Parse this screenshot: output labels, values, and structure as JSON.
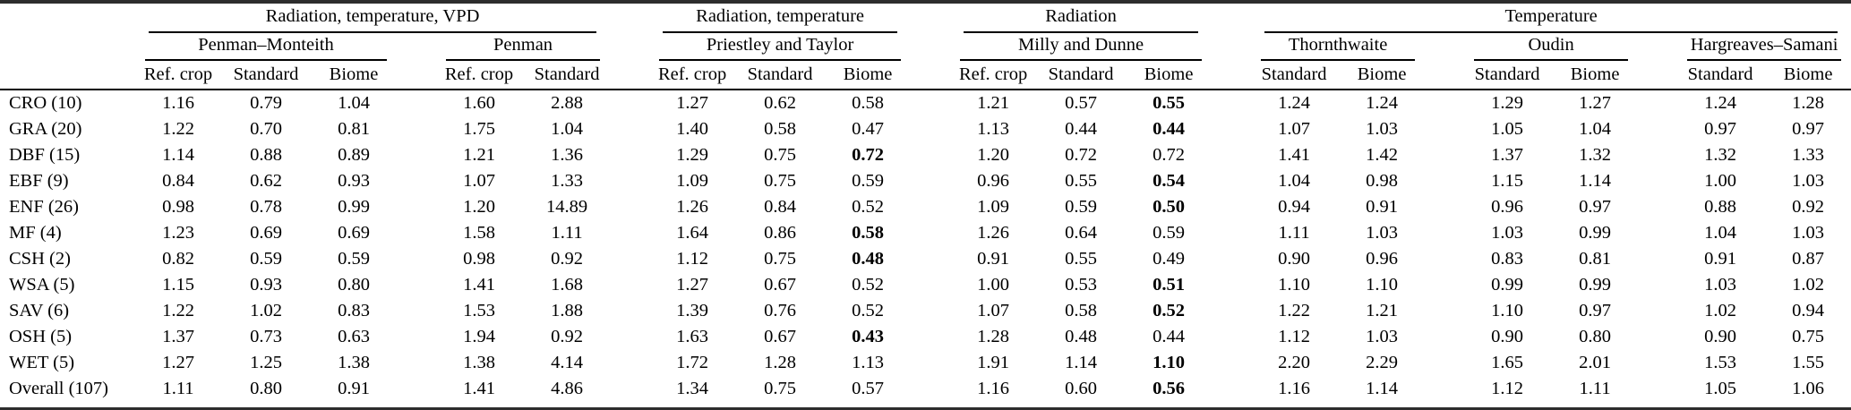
{
  "table": {
    "groups": [
      {
        "label": "Radiation, temperature, VPD",
        "methods": [
          {
            "name": "Penman–Monteith",
            "cols": [
              "Ref. crop",
              "Standard",
              "Biome"
            ]
          },
          {
            "name": "Penman",
            "cols": [
              "Ref. crop",
              "Standard"
            ]
          }
        ]
      },
      {
        "label": "Radiation, temperature",
        "methods": [
          {
            "name": "Priestley and Taylor",
            "cols": [
              "Ref. crop",
              "Standard",
              "Biome"
            ]
          }
        ]
      },
      {
        "label": "Radiation",
        "methods": [
          {
            "name": "Milly and Dunne",
            "cols": [
              "Ref. crop",
              "Standard",
              "Biome"
            ]
          }
        ]
      },
      {
        "label": "Temperature",
        "methods": [
          {
            "name": "Thornthwaite",
            "cols": [
              "Standard",
              "Biome"
            ]
          },
          {
            "name": "Oudin",
            "cols": [
              "Standard",
              "Biome"
            ]
          },
          {
            "name": "Hargreaves–Samani",
            "cols": [
              "Standard",
              "Biome"
            ]
          }
        ]
      }
    ],
    "rows": [
      {
        "label": "CRO (10)",
        "values": [
          "1.16",
          "0.79",
          "1.04",
          "1.60",
          "2.88",
          "1.27",
          "0.62",
          "0.58",
          "1.21",
          "0.57",
          "0.55",
          "1.24",
          "1.24",
          "1.29",
          "1.27",
          "1.24",
          "1.28"
        ],
        "bold": [
          10
        ]
      },
      {
        "label": "GRA (20)",
        "values": [
          "1.22",
          "0.70",
          "0.81",
          "1.75",
          "1.04",
          "1.40",
          "0.58",
          "0.47",
          "1.13",
          "0.44",
          "0.44",
          "1.07",
          "1.03",
          "1.05",
          "1.04",
          "0.97",
          "0.97"
        ],
        "bold": [
          10
        ]
      },
      {
        "label": "DBF (15)",
        "values": [
          "1.14",
          "0.88",
          "0.89",
          "1.21",
          "1.36",
          "1.29",
          "0.75",
          "0.72",
          "1.20",
          "0.72",
          "0.72",
          "1.41",
          "1.42",
          "1.37",
          "1.32",
          "1.32",
          "1.33"
        ],
        "bold": [
          7
        ]
      },
      {
        "label": "EBF (9)",
        "values": [
          "0.84",
          "0.62",
          "0.93",
          "1.07",
          "1.33",
          "1.09",
          "0.75",
          "0.59",
          "0.96",
          "0.55",
          "0.54",
          "1.04",
          "0.98",
          "1.15",
          "1.14",
          "1.00",
          "1.03"
        ],
        "bold": [
          10
        ]
      },
      {
        "label": "ENF (26)",
        "values": [
          "0.98",
          "0.78",
          "0.99",
          "1.20",
          "14.89",
          "1.26",
          "0.84",
          "0.52",
          "1.09",
          "0.59",
          "0.50",
          "0.94",
          "0.91",
          "0.96",
          "0.97",
          "0.88",
          "0.92"
        ],
        "bold": [
          10
        ]
      },
      {
        "label": "MF (4)",
        "values": [
          "1.23",
          "0.69",
          "0.69",
          "1.58",
          "1.11",
          "1.64",
          "0.86",
          "0.58",
          "1.26",
          "0.64",
          "0.59",
          "1.11",
          "1.03",
          "1.03",
          "0.99",
          "1.04",
          "1.03"
        ],
        "bold": [
          7
        ]
      },
      {
        "label": "CSH (2)",
        "values": [
          "0.82",
          "0.59",
          "0.59",
          "0.98",
          "0.92",
          "1.12",
          "0.75",
          "0.48",
          "0.91",
          "0.55",
          "0.49",
          "0.90",
          "0.96",
          "0.83",
          "0.81",
          "0.91",
          "0.87"
        ],
        "bold": [
          7
        ]
      },
      {
        "label": "WSA (5)",
        "values": [
          "1.15",
          "0.93",
          "0.80",
          "1.41",
          "1.68",
          "1.27",
          "0.67",
          "0.52",
          "1.00",
          "0.53",
          "0.51",
          "1.10",
          "1.10",
          "0.99",
          "0.99",
          "1.03",
          "1.02"
        ],
        "bold": [
          10
        ]
      },
      {
        "label": "SAV (6)",
        "values": [
          "1.22",
          "1.02",
          "0.83",
          "1.53",
          "1.88",
          "1.39",
          "0.76",
          "0.52",
          "1.07",
          "0.58",
          "0.52",
          "1.22",
          "1.21",
          "1.10",
          "0.97",
          "1.02",
          "0.94"
        ],
        "bold": [
          10
        ]
      },
      {
        "label": "OSH (5)",
        "values": [
          "1.37",
          "0.73",
          "0.63",
          "1.94",
          "0.92",
          "1.63",
          "0.67",
          "0.43",
          "1.28",
          "0.48",
          "0.44",
          "1.12",
          "1.03",
          "0.90",
          "0.80",
          "0.90",
          "0.75"
        ],
        "bold": [
          7
        ]
      },
      {
        "label": "WET (5)",
        "values": [
          "1.27",
          "1.25",
          "1.38",
          "1.38",
          "4.14",
          "1.72",
          "1.28",
          "1.13",
          "1.91",
          "1.14",
          "1.10",
          "2.20",
          "2.29",
          "1.65",
          "2.01",
          "1.53",
          "1.55"
        ],
        "bold": [
          10
        ]
      },
      {
        "label": "Overall (107)",
        "values": [
          "1.11",
          "0.80",
          "0.91",
          "1.41",
          "4.86",
          "1.34",
          "0.75",
          "0.57",
          "1.16",
          "0.60",
          "0.56",
          "1.16",
          "1.14",
          "1.12",
          "1.11",
          "1.05",
          "1.06"
        ],
        "bold": [
          10
        ]
      }
    ]
  },
  "rules_color": "#000000",
  "heavy_rule_color": "#2d2d2d"
}
